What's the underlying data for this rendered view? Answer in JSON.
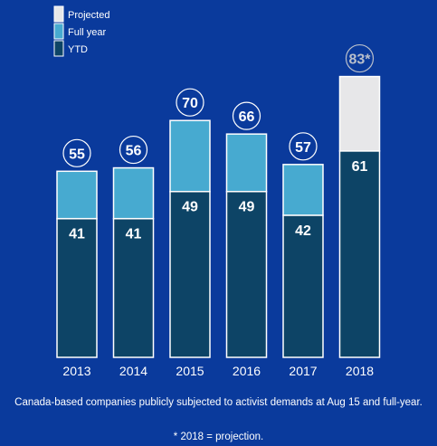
{
  "chart_data": {
    "type": "bar",
    "stacked": true,
    "categories": [
      "2013",
      "2014",
      "2015",
      "2016",
      "2017",
      "2018"
    ],
    "series": [
      {
        "name": "YTD",
        "values": [
          41,
          41,
          49,
          49,
          42,
          61
        ]
      },
      {
        "name": "Full year",
        "values": [
          14,
          15,
          21,
          17,
          15,
          null
        ]
      },
      {
        "name": "Projected",
        "values": [
          null,
          null,
          null,
          null,
          null,
          22
        ]
      }
    ],
    "totals": [
      55,
      56,
      70,
      66,
      57,
      83
    ],
    "total_labels": [
      "55",
      "56",
      "70",
      "66",
      "57",
      "83*"
    ],
    "ylim": [
      0,
      100
    ],
    "grid": false,
    "legend_position": "top-left",
    "colors": {
      "background": "#0a3a9c",
      "YTD": "#0d4466",
      "Full year": "#47aad0",
      "Projected": "#e7e7e9",
      "border": "#ffffff"
    }
  },
  "caption": "Canada-based companies publicly subjected to activist demands at Aug 15 and full-year.",
  "footnote": "* 2018 = projection."
}
